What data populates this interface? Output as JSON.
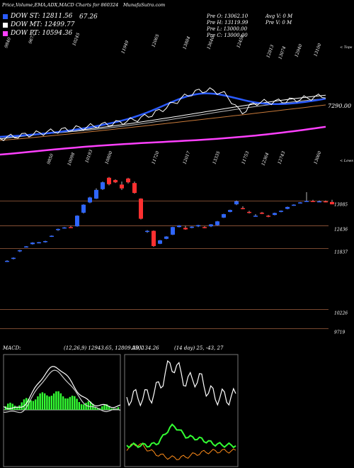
{
  "header": {
    "title": "Price,Volume,EMA,ADX,MACD Charts for 860324",
    "site": "MunafaSutra.com"
  },
  "legend": [
    {
      "label": "DOW ST: 12811.56",
      "color": "#2a5bff",
      "extra": "67.26"
    },
    {
      "label": "DOW MT: 12499.77",
      "color": "#ffffff",
      "extra": ""
    },
    {
      "label": "DOW PT: 10594.36",
      "color": "#ff40ff",
      "extra": ""
    }
  ],
  "ohlc_box": {
    "pre_o": "Pre   O: 13062.10",
    "pre_h": "Pre   H: 13119.99",
    "pre_l": "Pre   L: 13000.00",
    "pre_c": "Pre   C: 13000.00",
    "avg_v": "Avg V: 0  M",
    "pre_v": "Pre   V: 0  M"
  },
  "colors": {
    "up": "#2f66ff",
    "down": "#ff3030",
    "ema_short": "#2a5bff",
    "ema_mid": "#ffffff",
    "ema_long": "#ff40ff",
    "ema_extra": "#c87a3a",
    "macd_hist": "#33ff33",
    "adx_main": "#ffffff",
    "adx_plus": "#33ff33",
    "adx_minus": "#ff8c1a"
  },
  "chart_data": [
    {
      "type": "line",
      "name": "EMA",
      "top_ticks": [
        "9840",
        "9673",
        "10245",
        "11949",
        "12065",
        "13884",
        "13640",
        "12450",
        "12813",
        "13074",
        "12940",
        "13100"
      ],
      "bottom_ticks": [
        "9850",
        "10098",
        "10193",
        "10800",
        "11720",
        "12017",
        "13335",
        "11753",
        "12364",
        "12743",
        "13060"
      ],
      "right_label": "7290.00",
      "top_right_label": "< Tops",
      "bottom_right_label": "< Lows"
    },
    {
      "type": "candlestick",
      "name": "Price",
      "price_labels": [
        "13085",
        "12436",
        "11837",
        "10226",
        "9719"
      ],
      "candles": [
        {
          "o": 11500,
          "h": 11525,
          "l": 11480,
          "c": 11510
        },
        {
          "o": 11560,
          "h": 11600,
          "l": 11550,
          "c": 11590
        },
        {
          "o": 11760,
          "h": 11800,
          "l": 11740,
          "c": 11790
        },
        {
          "o": 11870,
          "h": 11900,
          "l": 11860,
          "c": 11890
        },
        {
          "o": 11950,
          "h": 12000,
          "l": 11940,
          "c": 11990
        },
        {
          "o": 11990,
          "h": 12010,
          "l": 11970,
          "c": 12000
        },
        {
          "o": 12010,
          "h": 12040,
          "l": 11990,
          "c": 12030
        },
        {
          "o": 12150,
          "h": 12180,
          "l": 12140,
          "c": 12170
        },
        {
          "o": 12320,
          "h": 12360,
          "l": 12300,
          "c": 12350
        },
        {
          "o": 12380,
          "h": 12400,
          "l": 12360,
          "c": 12390
        },
        {
          "o": 12400,
          "h": 12430,
          "l": 12380,
          "c": 12380
        },
        {
          "o": 12420,
          "h": 12710,
          "l": 12410,
          "c": 12700
        },
        {
          "o": 12780,
          "h": 13000,
          "l": 12760,
          "c": 12990
        },
        {
          "o": 13050,
          "h": 13200,
          "l": 13030,
          "c": 13180
        },
        {
          "o": 13150,
          "h": 13420,
          "l": 13140,
          "c": 13380
        },
        {
          "o": 13400,
          "h": 13600,
          "l": 13380,
          "c": 13580
        },
        {
          "o": 13700,
          "h": 13720,
          "l": 13500,
          "c": 13530
        },
        {
          "o": 13640,
          "h": 13660,
          "l": 13560,
          "c": 13580
        },
        {
          "o": 13520,
          "h": 13600,
          "l": 13380,
          "c": 13420
        },
        {
          "o": 13680,
          "h": 13700,
          "l": 13550,
          "c": 13580
        },
        {
          "o": 13560,
          "h": 13600,
          "l": 13280,
          "c": 13300
        },
        {
          "o": 13150,
          "h": 13160,
          "l": 12600,
          "c": 12620
        },
        {
          "o": 12280,
          "h": 12320,
          "l": 12250,
          "c": 12300
        },
        {
          "o": 12300,
          "h": 12310,
          "l": 11880,
          "c": 11900
        },
        {
          "o": 11960,
          "h": 12060,
          "l": 11950,
          "c": 12050
        },
        {
          "o": 12090,
          "h": 12160,
          "l": 12080,
          "c": 12150
        },
        {
          "o": 12200,
          "h": 12410,
          "l": 12190,
          "c": 12400
        },
        {
          "o": 12400,
          "h": 12450,
          "l": 12390,
          "c": 12440
        },
        {
          "o": 12380,
          "h": 12430,
          "l": 12330,
          "c": 12340
        },
        {
          "o": 12380,
          "h": 12420,
          "l": 12370,
          "c": 12410
        },
        {
          "o": 12420,
          "h": 12460,
          "l": 12400,
          "c": 12450
        },
        {
          "o": 12400,
          "h": 12420,
          "l": 12370,
          "c": 12380
        },
        {
          "o": 12420,
          "h": 12480,
          "l": 12400,
          "c": 12470
        },
        {
          "o": 12450,
          "h": 12560,
          "l": 12440,
          "c": 12550
        },
        {
          "o": 12650,
          "h": 12750,
          "l": 12640,
          "c": 12740
        },
        {
          "o": 12800,
          "h": 12860,
          "l": 12790,
          "c": 12850
        },
        {
          "o": 13000,
          "h": 13100,
          "l": 12980,
          "c": 13080
        },
        {
          "o": 12900,
          "h": 12950,
          "l": 12870,
          "c": 12880
        },
        {
          "o": 12800,
          "h": 12830,
          "l": 12760,
          "c": 12790
        },
        {
          "o": 12700,
          "h": 12740,
          "l": 12690,
          "c": 12700
        },
        {
          "o": 12780,
          "h": 12800,
          "l": 12740,
          "c": 12750
        },
        {
          "o": 12700,
          "h": 12720,
          "l": 12660,
          "c": 12680
        },
        {
          "o": 12720,
          "h": 12780,
          "l": 12710,
          "c": 12770
        },
        {
          "o": 12800,
          "h": 12840,
          "l": 12790,
          "c": 12830
        },
        {
          "o": 12880,
          "h": 12940,
          "l": 12870,
          "c": 12930
        },
        {
          "o": 12970,
          "h": 13000,
          "l": 12960,
          "c": 12990
        },
        {
          "o": 13030,
          "h": 13060,
          "l": 13020,
          "c": 13050
        },
        {
          "o": 13080,
          "h": 13320,
          "l": 13070,
          "c": 13090
        },
        {
          "o": 13090,
          "h": 13120,
          "l": 13060,
          "c": 13070
        },
        {
          "o": 13080,
          "h": 13100,
          "l": 13060,
          "c": 13080
        },
        {
          "o": 13080,
          "h": 13100,
          "l": 13050,
          "c": 13070
        },
        {
          "o": 13062,
          "h": 13120,
          "l": 13000,
          "c": 13000
        }
      ]
    },
    {
      "type": "line",
      "name": "MACD",
      "label": "MACD:",
      "params": "(12,26,9) 12943.65,  12809.39,  134.26"
    },
    {
      "type": "line",
      "name": "ADX",
      "label": "ADX",
      "params": "(14 day) 25,  -43,  27"
    }
  ]
}
